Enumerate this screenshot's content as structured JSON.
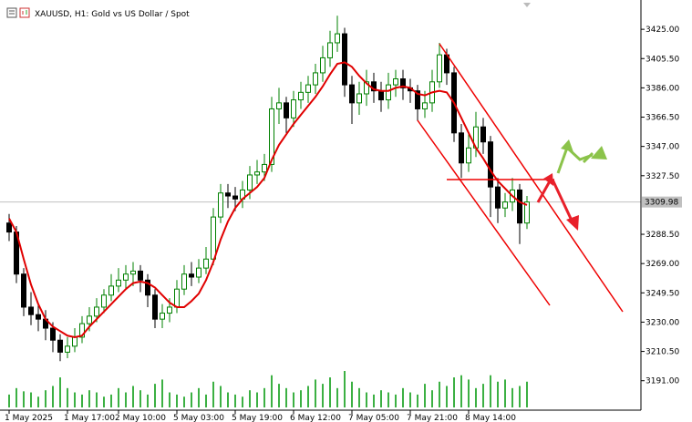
{
  "chart_data": {
    "type": "candlestick",
    "title": "XAUUSD, H1:  Gold vs US Dollar / Spot",
    "categories": [
      "1 May 2025",
      null,
      null,
      null,
      null,
      null,
      null,
      null,
      "1 May 17:00",
      null,
      null,
      null,
      null,
      null,
      null,
      "2 May 10:00",
      null,
      null,
      null,
      null,
      null,
      null,
      null,
      "5 May 03:00",
      null,
      null,
      null,
      null,
      null,
      null,
      null,
      "5 May 19:00",
      null,
      null,
      null,
      null,
      null,
      null,
      null,
      "6 May 12:00",
      null,
      null,
      null,
      null,
      null,
      null,
      null,
      "7 May 05:00",
      null,
      null,
      null,
      null,
      null,
      null,
      null,
      "7 May 21:00",
      null,
      null,
      null,
      null,
      null,
      null,
      null,
      "8 May 14:00",
      null,
      null,
      null,
      null,
      null,
      null,
      null,
      null
    ],
    "open": [
      3296,
      3290,
      3262,
      3240,
      3235,
      3232,
      3226,
      3218,
      3210,
      3214,
      3220,
      3229,
      3234,
      3240,
      3248,
      3254,
      3258,
      3262,
      3264,
      3258,
      3248,
      3232,
      3236,
      3240,
      3252,
      3262,
      3260,
      3266,
      3272,
      3300,
      3316,
      3314,
      3312,
      3318,
      3328,
      3330,
      3335,
      3372,
      3376,
      3366,
      3378,
      3383,
      3388,
      3396,
      3406,
      3416,
      3422,
      3388,
      3376,
      3382,
      3390,
      3384,
      3378,
      3388,
      3392,
      3386,
      3384,
      3372,
      3376,
      3390,
      3408,
      3396,
      3356,
      3336,
      3346,
      3360,
      3350,
      3320,
      3306,
      3310,
      3318,
      3296
    ],
    "high": [
      3302,
      3294,
      3266,
      3250,
      3242,
      3238,
      3230,
      3222,
      3220,
      3226,
      3234,
      3240,
      3246,
      3252,
      3262,
      3266,
      3268,
      3270,
      3268,
      3262,
      3252,
      3242,
      3246,
      3258,
      3268,
      3270,
      3272,
      3280,
      3306,
      3322,
      3322,
      3320,
      3324,
      3334,
      3338,
      3342,
      3380,
      3386,
      3380,
      3384,
      3390,
      3394,
      3402,
      3414,
      3424,
      3434,
      3426,
      3394,
      3390,
      3398,
      3396,
      3390,
      3396,
      3398,
      3398,
      3392,
      3388,
      3384,
      3398,
      3416,
      3412,
      3400,
      3362,
      3356,
      3370,
      3366,
      3354,
      3326,
      3316,
      3326,
      3322,
      3314
    ],
    "low": [
      3284,
      3256,
      3234,
      3228,
      3224,
      3218,
      3210,
      3204,
      3206,
      3210,
      3216,
      3224,
      3230,
      3236,
      3244,
      3250,
      3252,
      3254,
      3250,
      3240,
      3226,
      3226,
      3230,
      3236,
      3248,
      3254,
      3256,
      3262,
      3268,
      3296,
      3306,
      3304,
      3306,
      3312,
      3322,
      3324,
      3330,
      3362,
      3356,
      3360,
      3372,
      3376,
      3382,
      3390,
      3400,
      3410,
      3380,
      3362,
      3368,
      3374,
      3376,
      3370,
      3372,
      3380,
      3378,
      3376,
      3364,
      3366,
      3370,
      3386,
      3388,
      3350,
      3326,
      3330,
      3340,
      3342,
      3300,
      3296,
      3300,
      3304,
      3282,
      3292
    ],
    "close": [
      3290,
      3262,
      3240,
      3235,
      3232,
      3226,
      3218,
      3210,
      3214,
      3220,
      3229,
      3234,
      3240,
      3248,
      3254,
      3258,
      3262,
      3264,
      3258,
      3248,
      3232,
      3236,
      3240,
      3252,
      3262,
      3260,
      3266,
      3272,
      3300,
      3316,
      3314,
      3312,
      3318,
      3328,
      3330,
      3335,
      3372,
      3376,
      3366,
      3378,
      3383,
      3388,
      3396,
      3406,
      3416,
      3422,
      3388,
      3376,
      3382,
      3390,
      3384,
      3378,
      3388,
      3392,
      3386,
      3384,
      3372,
      3376,
      3390,
      3408,
      3396,
      3356,
      3336,
      3346,
      3360,
      3350,
      3320,
      3306,
      3310,
      3318,
      3296,
      3310
    ],
    "moving_average": {
      "color": "#e00000",
      "values": [
        3299,
        3290,
        3272,
        3255,
        3242,
        3232,
        3227,
        3224,
        3221,
        3220,
        3221,
        3227,
        3232,
        3237,
        3242,
        3247,
        3252,
        3256,
        3257,
        3256,
        3253,
        3248,
        3243,
        3240,
        3240,
        3244,
        3249,
        3258,
        3270,
        3285,
        3297,
        3306,
        3312,
        3316,
        3320,
        3326,
        3338,
        3348,
        3355,
        3362,
        3368,
        3374,
        3380,
        3387,
        3395,
        3402,
        3403,
        3400,
        3394,
        3389,
        3385,
        3384,
        3384,
        3386,
        3387,
        3386,
        3382,
        3381,
        3383,
        3384,
        3383,
        3376,
        3366,
        3356,
        3346,
        3339,
        3331,
        3324,
        3319,
        3314,
        3310,
        3308
      ]
    },
    "volume": {
      "color": "#3cb043",
      "values": [
        12,
        18,
        15,
        14,
        10,
        16,
        20,
        28,
        18,
        14,
        12,
        16,
        14,
        10,
        12,
        18,
        14,
        20,
        16,
        12,
        22,
        26,
        14,
        12,
        10,
        14,
        18,
        12,
        24,
        20,
        14,
        12,
        10,
        16,
        14,
        18,
        30,
        22,
        18,
        14,
        16,
        20,
        26,
        22,
        28,
        18,
        34,
        24,
        18,
        14,
        12,
        16,
        14,
        12,
        18,
        14,
        12,
        22,
        16,
        24,
        20,
        28,
        30,
        26,
        18,
        22,
        30,
        24,
        26,
        18,
        20,
        24
      ]
    },
    "up_color": "#008000",
    "down_color": "#000000",
    "ylim": [
      3171.4,
      3444.5
    ],
    "yticks": [
      {
        "value": 3191,
        "label": "3191.00"
      },
      {
        "value": 3210.5,
        "label": "3210.50"
      },
      {
        "value": 3230,
        "label": "3230.00"
      },
      {
        "value": 3249.5,
        "label": "3249.50"
      },
      {
        "value": 3269,
        "label": "3269.00"
      },
      {
        "value": 3288.5,
        "label": "3288.50"
      },
      {
        "value": 3327.5,
        "label": "3327.50"
      },
      {
        "value": 3347,
        "label": "3347.00"
      },
      {
        "value": 3366.5,
        "label": "3366.50"
      },
      {
        "value": 3386,
        "label": "3386.00"
      },
      {
        "value": 3405.5,
        "label": "3405.50"
      },
      {
        "value": 3425,
        "label": "3425.00"
      }
    ],
    "current_price": 3309.98
  }
}
